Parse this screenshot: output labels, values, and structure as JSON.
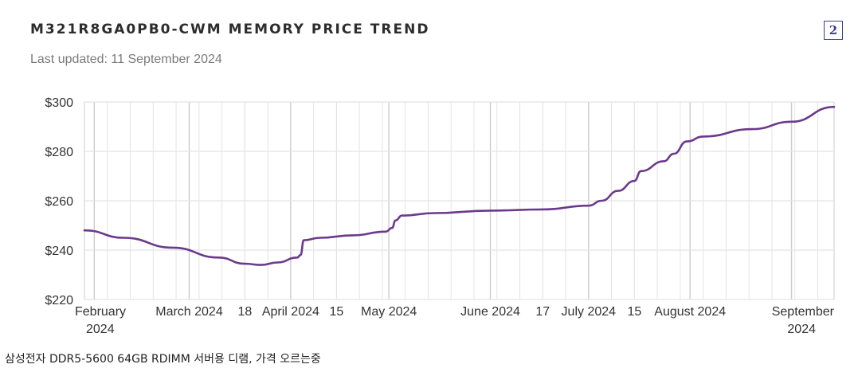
{
  "header": {
    "title": "M321R8GA0PB0-CWM MEMORY PRICE TREND",
    "subtitle": "Last updated: 11 September 2024",
    "badge": "2"
  },
  "caption": "삼성전자 DDR5-5600 64GB RDIMM 서버용 디램, 가격 오르는중",
  "colors": {
    "line": "#6b3a8c",
    "grid": "#e4e4e4",
    "month_grid": "#cccccc",
    "axis_text": "#333333"
  },
  "chart_data": {
    "type": "line",
    "title": "M321R8GA0PB0-CWM MEMORY PRICE TREND",
    "xlabel": "",
    "ylabel": "",
    "xlim": [
      "2024-01-29",
      "2024-09-14"
    ],
    "ylim": [
      220,
      300
    ],
    "y_ticks": [
      "$220",
      "$240",
      "$260",
      "$280",
      "$300"
    ],
    "y_tick_values": [
      220,
      240,
      260,
      280,
      300
    ],
    "x_ticks": [
      {
        "date": "2024-02-01",
        "label": [
          "February",
          "2024"
        ]
      },
      {
        "date": "2024-03-01",
        "label": [
          "March 2024"
        ]
      },
      {
        "date": "2024-03-18",
        "label": [
          "18"
        ]
      },
      {
        "date": "2024-04-01",
        "label": [
          "April 2024"
        ]
      },
      {
        "date": "2024-04-15",
        "label": [
          "15"
        ]
      },
      {
        "date": "2024-05-01",
        "label": [
          "May 2024"
        ]
      },
      {
        "date": "2024-06-01",
        "label": [
          "June 2024"
        ]
      },
      {
        "date": "2024-06-17",
        "label": [
          "17"
        ]
      },
      {
        "date": "2024-07-01",
        "label": [
          "July 2024"
        ]
      },
      {
        "date": "2024-07-15",
        "label": [
          "15"
        ]
      },
      {
        "date": "2024-08-01",
        "label": [
          "August 2024"
        ]
      },
      {
        "date": "2024-09-01",
        "label": [
          "September",
          "2024"
        ]
      }
    ],
    "grid": true,
    "series": [
      {
        "points": [
          {
            "x": "2024-01-29",
            "y": 248
          },
          {
            "x": "2024-02-10",
            "y": 245
          },
          {
            "x": "2024-02-25",
            "y": 241
          },
          {
            "x": "2024-03-10",
            "y": 237
          },
          {
            "x": "2024-03-18",
            "y": 234.5
          },
          {
            "x": "2024-03-23",
            "y": 234
          },
          {
            "x": "2024-03-28",
            "y": 235
          },
          {
            "x": "2024-04-03",
            "y": 237
          },
          {
            "x": "2024-04-04",
            "y": 238
          },
          {
            "x": "2024-04-05",
            "y": 244
          },
          {
            "x": "2024-04-10",
            "y": 245
          },
          {
            "x": "2024-04-20",
            "y": 246
          },
          {
            "x": "2024-04-30",
            "y": 247.5
          },
          {
            "x": "2024-05-02",
            "y": 249
          },
          {
            "x": "2024-05-03",
            "y": 252
          },
          {
            "x": "2024-05-05",
            "y": 254
          },
          {
            "x": "2024-05-15",
            "y": 255
          },
          {
            "x": "2024-06-01",
            "y": 256
          },
          {
            "x": "2024-06-17",
            "y": 256.5
          },
          {
            "x": "2024-07-01",
            "y": 258
          },
          {
            "x": "2024-07-05",
            "y": 260
          },
          {
            "x": "2024-07-10",
            "y": 264
          },
          {
            "x": "2024-07-15",
            "y": 268
          },
          {
            "x": "2024-07-17",
            "y": 272
          },
          {
            "x": "2024-07-24",
            "y": 276
          },
          {
            "x": "2024-07-27",
            "y": 279
          },
          {
            "x": "2024-07-31",
            "y": 284
          },
          {
            "x": "2024-08-05",
            "y": 286
          },
          {
            "x": "2024-08-20",
            "y": 289
          },
          {
            "x": "2024-09-01",
            "y": 292
          },
          {
            "x": "2024-09-14",
            "y": 298
          }
        ]
      }
    ]
  }
}
